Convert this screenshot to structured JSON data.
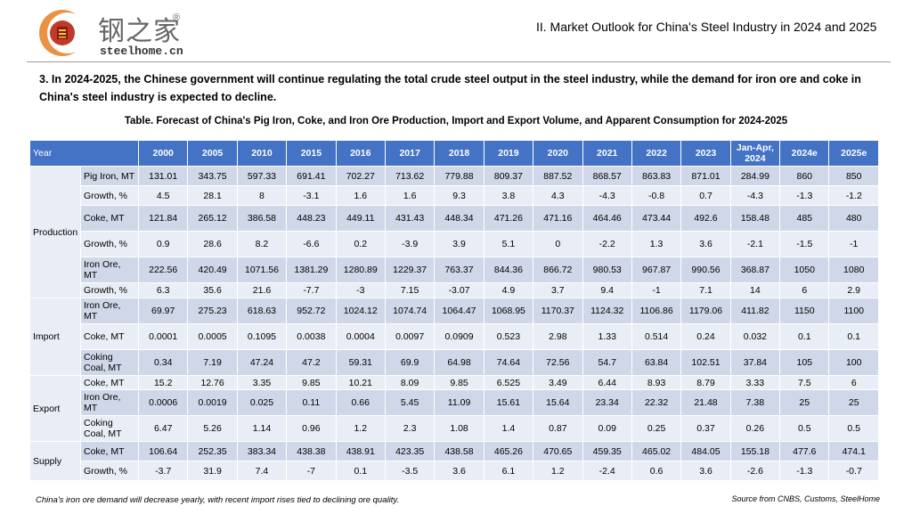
{
  "logo": {
    "cn_text": "钢之家",
    "reg_mark": "®",
    "en_text": "steelhome.cn"
  },
  "header": {
    "title": "II. Market Outlook for China's Steel Industry in 2024 and 2025"
  },
  "headline": "3. In 2024-2025, the Chinese government will continue regulating the total crude steel output in the steel industry, while the demand for iron ore and coke in China's steel industry is expected to decline.",
  "table": {
    "caption": "Table. Forecast of China's Pig Iron, Coke, and Iron Ore Production, Import and Export Volume, and Apparent Consumption for 2024-2025",
    "year_label": "Year",
    "columns": [
      "2000",
      "2005",
      "2010",
      "2015",
      "2016",
      "2017",
      "2018",
      "2019",
      "2020",
      "2021",
      "2022",
      "2023",
      "Jan-Apr, 2024",
      "2024e",
      "2025e"
    ],
    "groups": [
      {
        "name": "Production",
        "rows": [
          {
            "label": "Pig Iron, MT",
            "values": [
              "131.01",
              "343.75",
              "597.33",
              "691.41",
              "702.27",
              "713.62",
              "779.88",
              "809.37",
              "887.52",
              "868.57",
              "863.83",
              "871.01",
              "284.99",
              "860",
              "850"
            ]
          },
          {
            "label": "Growth, %",
            "values": [
              "4.5",
              "28.1",
              "8",
              "-3.1",
              "1.6",
              "1.6",
              "9.3",
              "3.8",
              "4.3",
              "-4.3",
              "-0.8",
              "0.7",
              "-4.3",
              "-1.3",
              "-1.2"
            ]
          },
          {
            "label": "Coke, MT",
            "values": [
              "121.84",
              "265.12",
              "386.58",
              "448.23",
              "449.11",
              "431.43",
              "448.34",
              "471.26",
              "471.16",
              "464.46",
              "473.44",
              "492.6",
              "158.48",
              "485",
              "480"
            ]
          },
          {
            "label": "Growth, %",
            "values": [
              "0.9",
              "28.6",
              "8.2",
              "-6.6",
              "0.2",
              "-3.9",
              "3.9",
              "5.1",
              "0",
              "-2.2",
              "1.3",
              "3.6",
              "-2.1",
              "-1.5",
              "-1"
            ]
          },
          {
            "label": "Iron Ore, MT",
            "values": [
              "222.56",
              "420.49",
              "1071.56",
              "1381.29",
              "1280.89",
              "1229.37",
              "763.37",
              "844.36",
              "866.72",
              "980.53",
              "967.87",
              "990.56",
              "368.87",
              "1050",
              "1080"
            ]
          },
          {
            "label": "Growth, %",
            "values": [
              "6.3",
              "35.6",
              "21.6",
              "-7.7",
              "-3",
              "7.15",
              "-3.07",
              "4.9",
              "3.7",
              "9.4",
              "-1",
              "7.1",
              "14",
              "6",
              "2.9"
            ]
          }
        ]
      },
      {
        "name": "Import",
        "rows": [
          {
            "label": "Iron Ore, MT",
            "values": [
              "69.97",
              "275.23",
              "618.63",
              "952.72",
              "1024.12",
              "1074.74",
              "1064.47",
              "1068.95",
              "1170.37",
              "1124.32",
              "1106.86",
              "1179.06",
              "411.82",
              "1150",
              "1100"
            ]
          },
          {
            "label": "Coke, MT",
            "values": [
              "0.0001",
              "0.0005",
              "0.1095",
              "0.0038",
              "0.0004",
              "0.0097",
              "0.0909",
              "0.523",
              "2.98",
              "1.33",
              "0.514",
              "0.24",
              "0.032",
              "0.1",
              "0.1"
            ]
          },
          {
            "label": "Coking Coal, MT",
            "values": [
              "0.34",
              "7.19",
              "47.24",
              "47.2",
              "59.31",
              "69.9",
              "64.98",
              "74.64",
              "72.56",
              "54.7",
              "63.84",
              "102.51",
              "37.84",
              "105",
              "100"
            ]
          }
        ]
      },
      {
        "name": "Export",
        "rows": [
          {
            "label": "Coke, MT",
            "values": [
              "15.2",
              "12.76",
              "3.35",
              "9.85",
              "10.21",
              "8.09",
              "9.85",
              "6.525",
              "3.49",
              "6.44",
              "8.93",
              "8.79",
              "3.33",
              "7.5",
              "6"
            ]
          },
          {
            "label": "Iron Ore, MT",
            "values": [
              "0.0006",
              "0.0019",
              "0.025",
              "0.11",
              "0.66",
              "5.45",
              "11.09",
              "15.61",
              "15.64",
              "23.34",
              "22.32",
              "21.48",
              "7.38",
              "25",
              "25"
            ]
          },
          {
            "label": "Coking Coal, MT",
            "values": [
              "6.47",
              "5.26",
              "1.14",
              "0.96",
              "1.2",
              "2.3",
              "1.08",
              "1.4",
              "0.87",
              "0.09",
              "0.25",
              "0.37",
              "0.26",
              "0.5",
              "0.5"
            ]
          }
        ]
      },
      {
        "name": "Supply",
        "rows": [
          {
            "label": "Coke, MT",
            "values": [
              "106.64",
              "252.35",
              "383.34",
              "438.38",
              "438.91",
              "423.35",
              "438.58",
              "465.26",
              "470.65",
              "459.35",
              "465.02",
              "484.05",
              "155.18",
              "477.6",
              "474.1"
            ]
          },
          {
            "label": "Growth, %",
            "values": [
              "-3.7",
              "31.9",
              "7.4",
              "-7",
              "0.1",
              "-3.5",
              "3.6",
              "6.1",
              "1.2",
              "-2.4",
              "0.6",
              "3.6",
              "-2.6",
              "-1.3",
              "-0.7"
            ]
          }
        ]
      }
    ]
  },
  "footnote": "China's iron ore demand will decrease yearly, with recent import rises tied to declining ore quality.",
  "source": "Source from CNBS, Customs, SteelHome",
  "colors": {
    "header_blue": "#4472c4",
    "row_dark": "#cfd7e8",
    "row_light": "#e9edf5",
    "logo_red": "#c0392b",
    "logo_orange": "#e67e22"
  }
}
